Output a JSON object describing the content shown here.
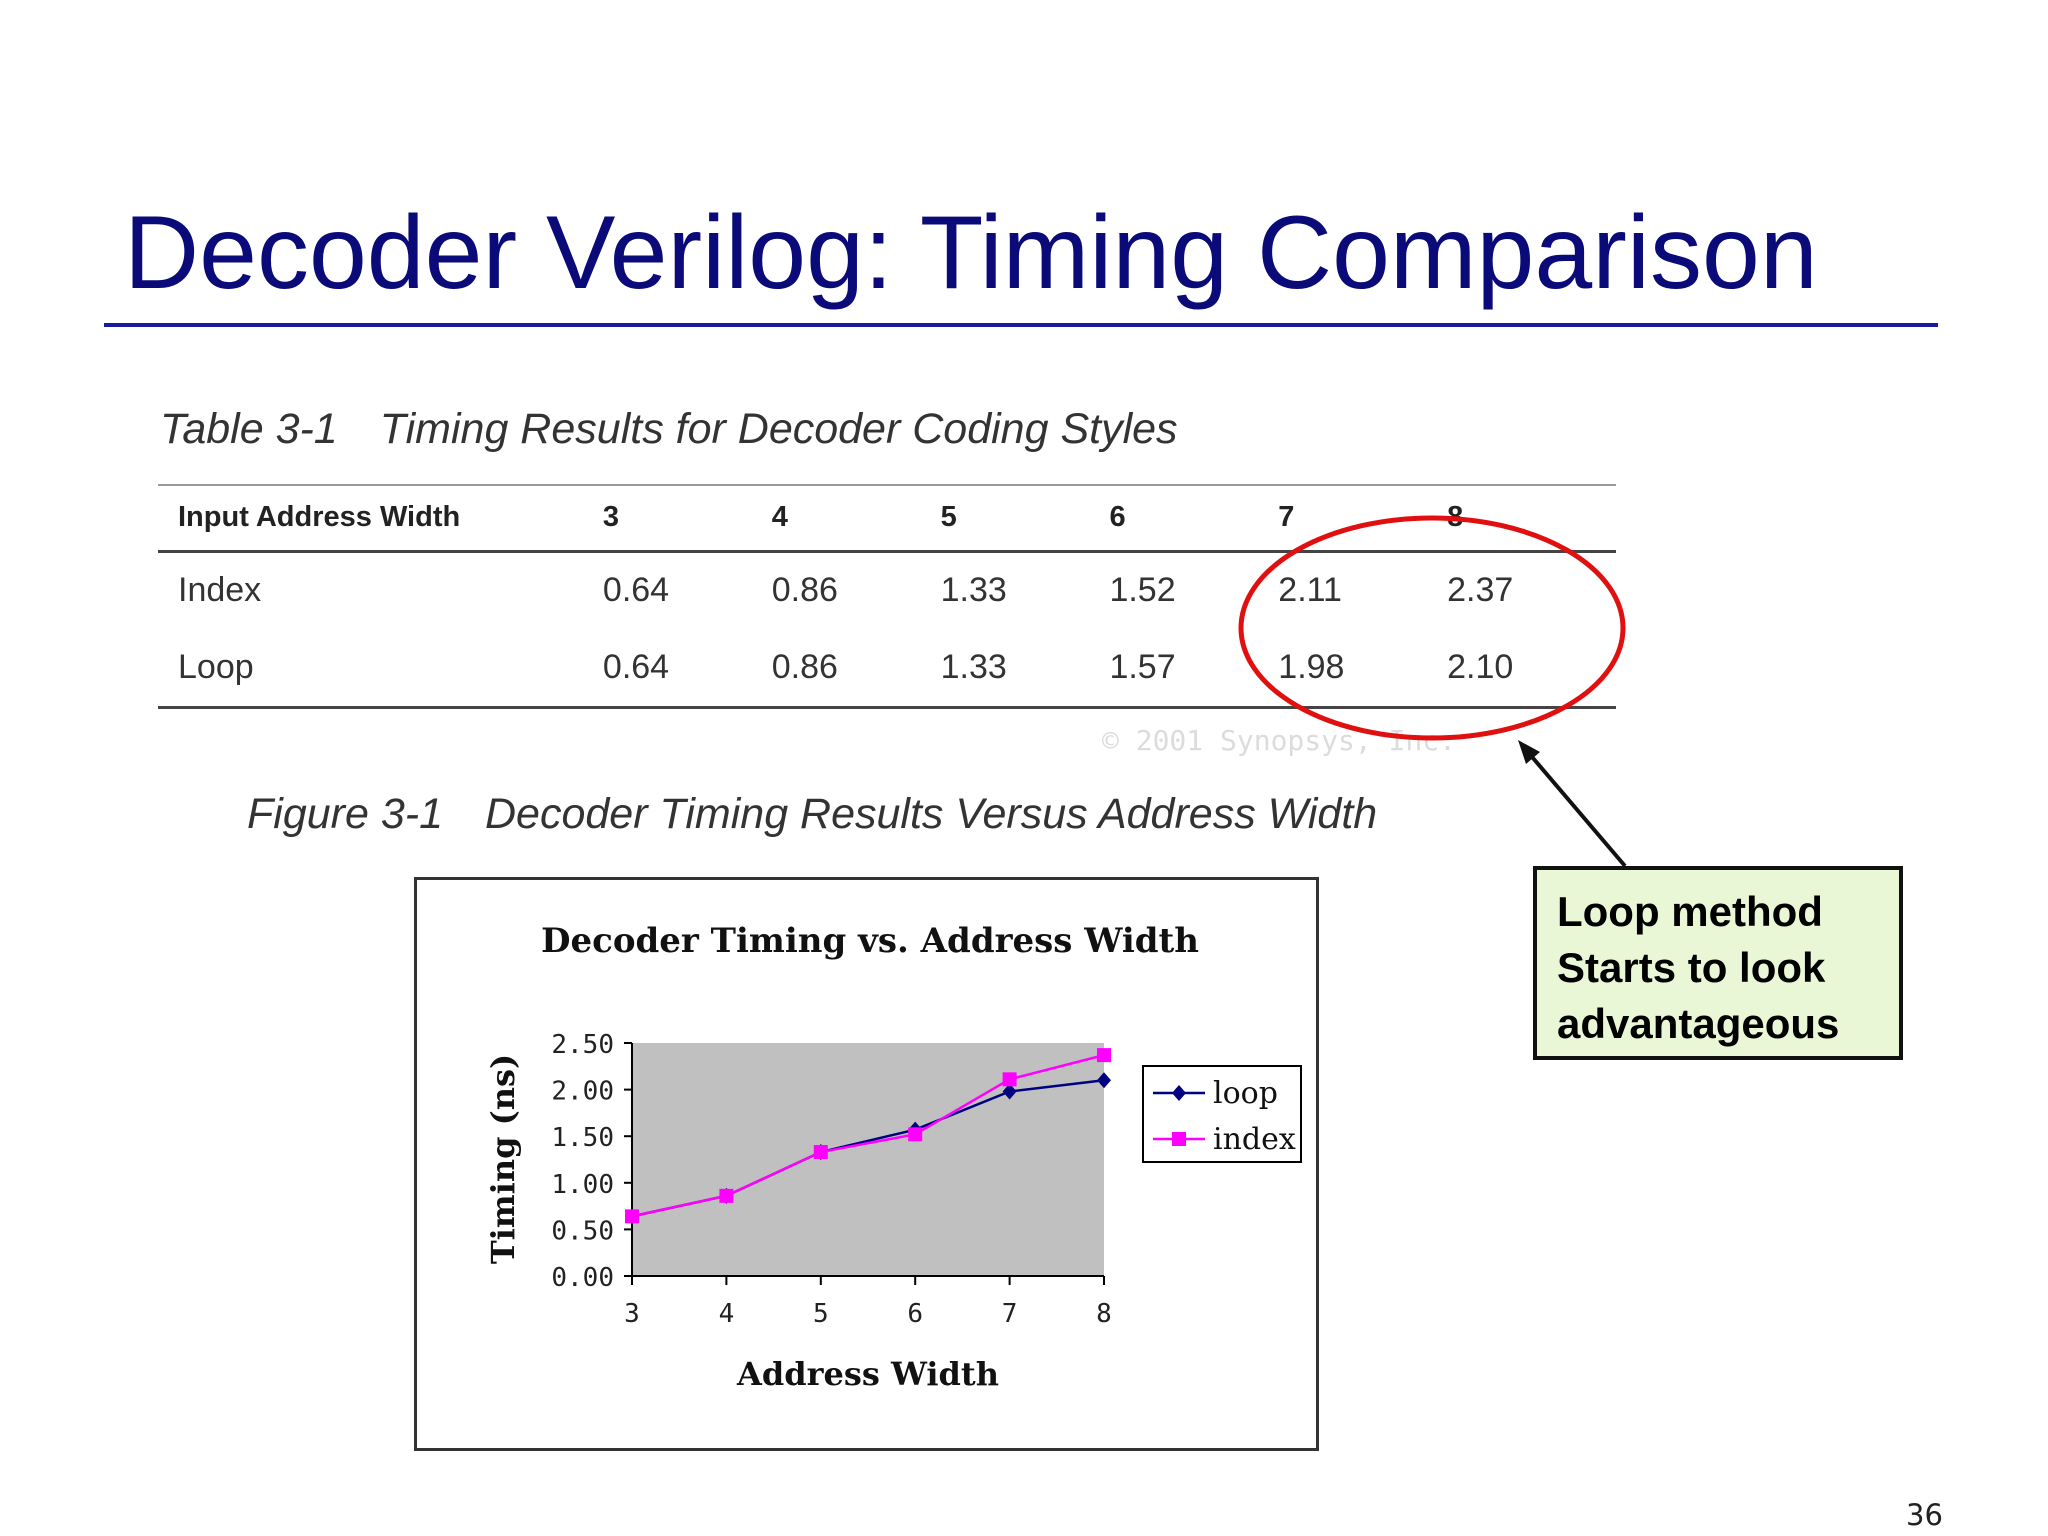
{
  "slide": {
    "title": "Decoder Verilog: Timing Comparison",
    "page_number": "36"
  },
  "table": {
    "caption_number": "Table 3-1",
    "caption_text": "Timing Results for Decoder Coding Styles",
    "header_label": "Input Address Width",
    "columns": [
      "3",
      "4",
      "5",
      "6",
      "7",
      "8"
    ],
    "rows": [
      {
        "label": "Index",
        "values": [
          "0.64",
          "0.86",
          "1.33",
          "1.52",
          "2.11",
          "2.37"
        ]
      },
      {
        "label": "Loop",
        "values": [
          "0.64",
          "0.86",
          "1.33",
          "1.57",
          "1.98",
          "2.10"
        ]
      }
    ],
    "copyright": "© 2001 Synopsys, Inc."
  },
  "figure": {
    "caption_number": "Figure 3-1",
    "caption_text": "Decoder Timing Results Versus Address Width"
  },
  "chart_data": {
    "type": "line",
    "title": "Decoder Timing vs. Address Width",
    "xlabel": "Address Width",
    "ylabel": "Timing (ns)",
    "x": [
      3,
      4,
      5,
      6,
      7,
      8
    ],
    "ylim": [
      0,
      2.5
    ],
    "yticks": [
      "0.00",
      "0.50",
      "1.00",
      "1.50",
      "2.00",
      "2.50"
    ],
    "grid": false,
    "plot_background": "#c0c0c0",
    "legend_position": "right",
    "series": [
      {
        "name": "loop",
        "values": [
          0.64,
          0.86,
          1.33,
          1.57,
          1.98,
          2.1
        ],
        "color": "#000080",
        "marker": "diamond"
      },
      {
        "name": "index",
        "values": [
          0.64,
          0.86,
          1.33,
          1.52,
          2.11,
          2.37
        ],
        "color": "#ff00ff",
        "marker": "square"
      }
    ]
  },
  "annotation": {
    "lines": [
      "Loop method",
      "Starts to look",
      "advantageous"
    ],
    "highlight_color": "#e01010",
    "callout_background": "#eaf7d6"
  }
}
